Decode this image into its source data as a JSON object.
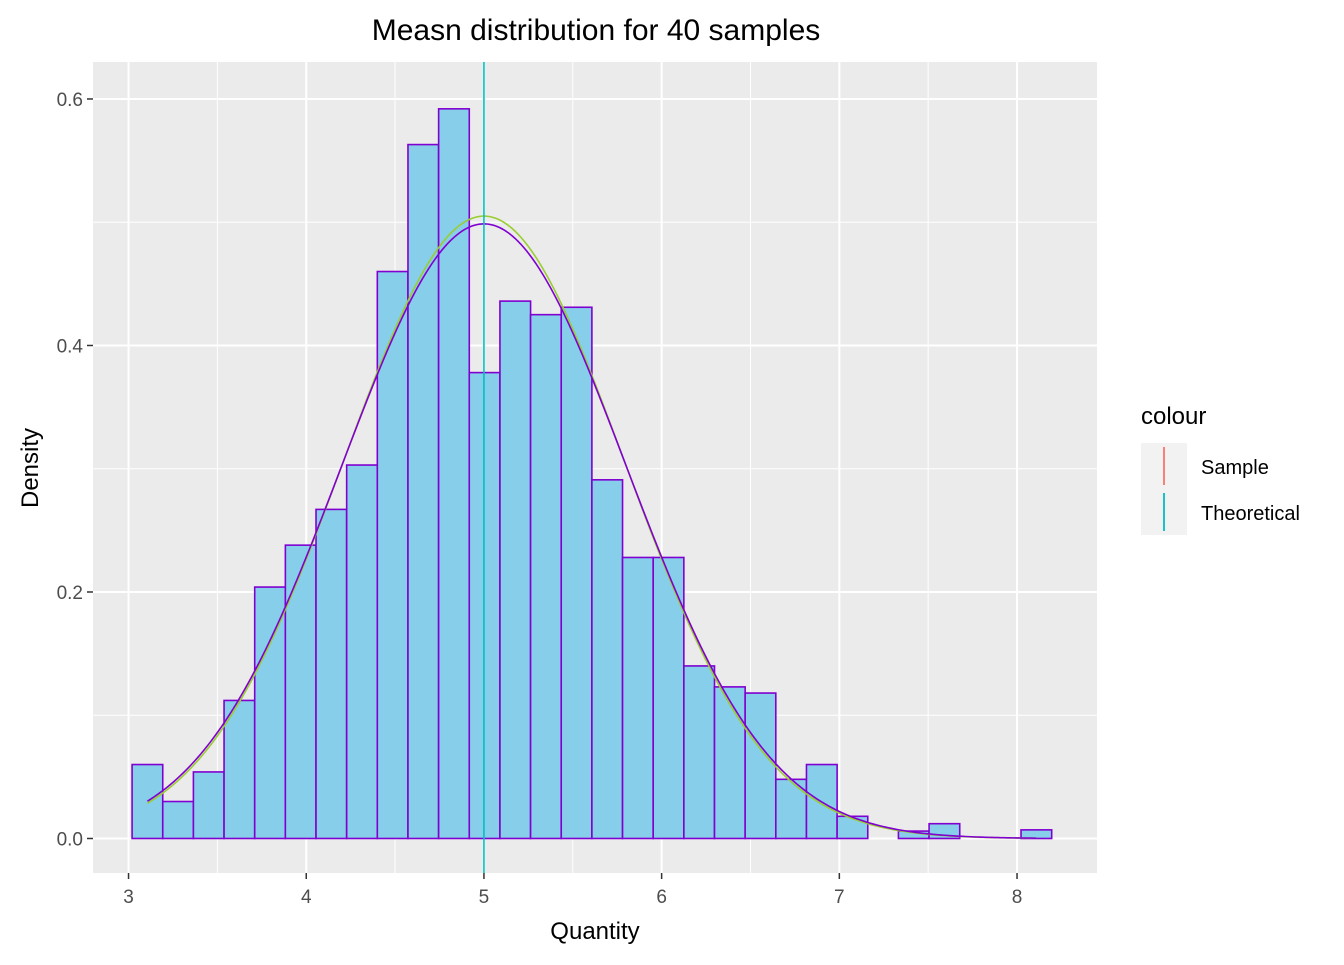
{
  "chart_data": {
    "type": "bar",
    "subtype": "histogram",
    "title": "Measn distribution for 40 samples",
    "xlabel": "Quantity",
    "ylabel": "Density",
    "xlim": [
      2.8,
      8.45
    ],
    "ylim": [
      -0.028,
      0.63
    ],
    "x_ticks": [
      3,
      4,
      5,
      6,
      7,
      8
    ],
    "y_ticks": [
      0.0,
      0.2,
      0.4,
      0.6
    ],
    "y_tick_labels": [
      "0.0",
      "0.2",
      "0.4",
      "0.6"
    ],
    "grid": true,
    "bins": {
      "start": 3.02,
      "width": 0.1725,
      "density": [
        0.06,
        0.03,
        0.054,
        0.112,
        0.204,
        0.238,
        0.267,
        0.303,
        0.46,
        0.563,
        0.592,
        0.378,
        0.436,
        0.425,
        0.431,
        0.291,
        0.228,
        0.228,
        0.14,
        0.123,
        0.118,
        0.048,
        0.06,
        0.018,
        0.0,
        0.006,
        0.012,
        0.0,
        0.0,
        0.007
      ]
    },
    "fill_color": "#87CEEB",
    "border_color": "#8000D0",
    "curves": [
      {
        "name": "Sample",
        "mean": 5.0,
        "sd": 0.79,
        "color": "#9ACD32"
      },
      {
        "name": "Theoretical",
        "mean": 5.0,
        "sd": 0.8,
        "color": "#8000D0"
      }
    ],
    "vlines": [
      {
        "name": "Theoretical",
        "x": 5.0,
        "color": "#00BFC4"
      }
    ],
    "legend": {
      "position": "right",
      "title": "colour",
      "items": [
        {
          "label": "Sample",
          "color": "#F8766D"
        },
        {
          "label": "Theoretical",
          "color": "#00BFC4"
        }
      ]
    }
  }
}
